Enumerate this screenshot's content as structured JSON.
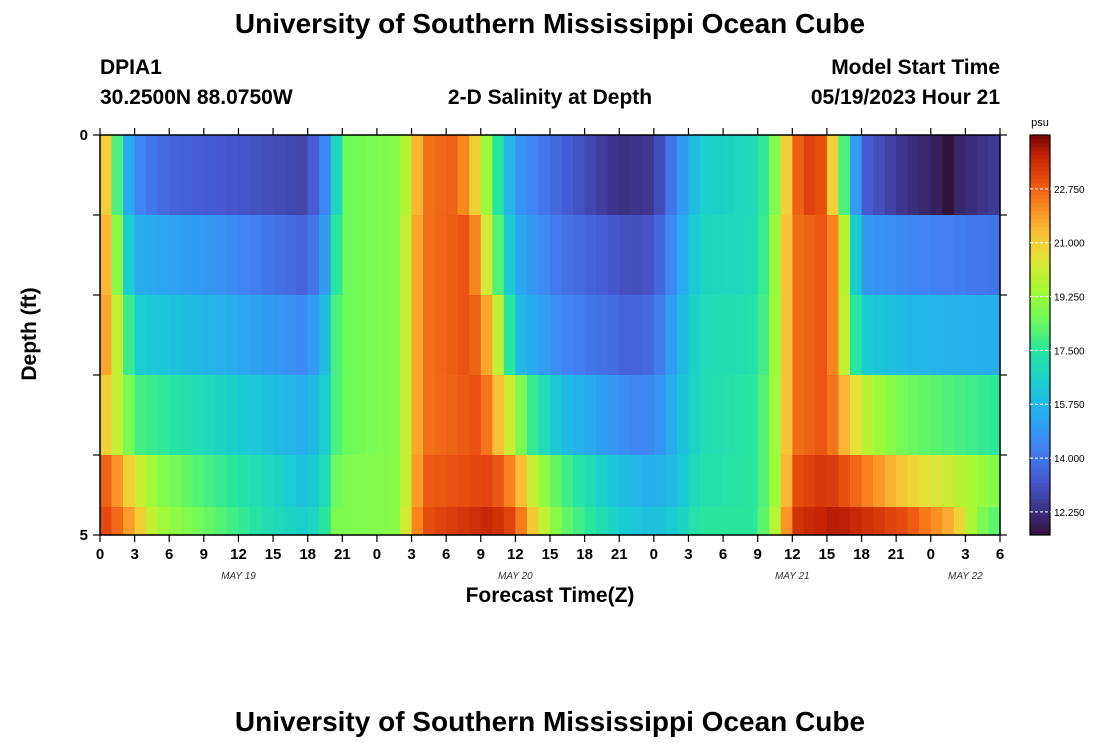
{
  "header": {
    "title": "University of Southern Mississippi Ocean Cube",
    "station": "DPIA1",
    "coords": "30.2500N  88.0750W",
    "plot_title": "2-D Salinity at Depth",
    "start_label": "Model Start Time",
    "start_value": "05/19/2023 Hour 21"
  },
  "footer": {
    "title": "University of Southern Mississippi Ocean Cube"
  },
  "chart_data": {
    "type": "heatmap",
    "title": "2-D Salinity at Depth",
    "xlabel": "Forecast Time(Z)",
    "ylabel": "Depth (ft)",
    "ylim": [
      0,
      5
    ],
    "y_tick_labels": [
      "0",
      "5"
    ],
    "x_tick_labels": [
      "0",
      "3",
      "6",
      "9",
      "12",
      "15",
      "18",
      "21",
      "0",
      "3",
      "6",
      "9",
      "12",
      "15",
      "18",
      "21",
      "0",
      "3",
      "6",
      "9",
      "12",
      "15",
      "18",
      "21",
      "0",
      "3",
      "6"
    ],
    "date_labels": [
      "MAY 19",
      "MAY 20",
      "MAY 21",
      "MAY 22"
    ],
    "x_hours_range": [
      0,
      78
    ],
    "colorbar": {
      "unit": "psu",
      "min": 11.5,
      "max": 24.5,
      "tick_labels": [
        "22.750",
        "21.000",
        "19.250",
        "17.500",
        "15.750",
        "14.000",
        "12.250"
      ],
      "tick_values": [
        22.75,
        21.0,
        19.25,
        17.5,
        15.75,
        14.0,
        12.25
      ]
    },
    "depth_layers": [
      {
        "depth": 0.5,
        "keyframes_hours": [
          [
            0,
            22.5
          ],
          [
            1,
            19.5
          ],
          [
            2,
            16.5
          ],
          [
            3,
            14.5
          ],
          [
            6,
            13.6
          ],
          [
            18,
            12.8
          ],
          [
            19.5,
            14.5
          ],
          [
            20.5,
            16.8
          ],
          [
            21.5,
            18.5
          ],
          [
            26,
            19.0
          ],
          [
            27,
            20.5
          ],
          [
            28,
            22.5
          ],
          [
            31,
            22.8
          ],
          [
            32.5,
            21.0
          ],
          [
            34,
            18.5
          ],
          [
            35,
            16.5
          ],
          [
            36,
            15.0
          ],
          [
            40,
            13.5
          ],
          [
            45,
            12.3
          ],
          [
            48,
            12.5
          ],
          [
            50,
            14.5
          ],
          [
            52,
            16.5
          ],
          [
            57,
            17.0
          ],
          [
            59,
            19.5
          ],
          [
            60,
            22.5
          ],
          [
            62,
            23.5
          ],
          [
            63,
            22.5
          ],
          [
            64,
            19.5
          ],
          [
            65,
            16.5
          ],
          [
            66,
            13.5
          ],
          [
            70,
            12.3
          ],
          [
            73,
            11.8
          ],
          [
            73.5,
            11.5
          ],
          [
            74,
            12.0
          ],
          [
            78,
            12.6
          ]
        ]
      },
      {
        "depth": 1.5,
        "keyframes_hours": [
          [
            0,
            22.5
          ],
          [
            1,
            20.5
          ],
          [
            2,
            17.5
          ],
          [
            3,
            15.5
          ],
          [
            9,
            15.0
          ],
          [
            15,
            14.0
          ],
          [
            18,
            13.5
          ],
          [
            19.5,
            15.0
          ],
          [
            20.5,
            17.5
          ],
          [
            21.5,
            18.5
          ],
          [
            26,
            19.0
          ],
          [
            27,
            21.0
          ],
          [
            28,
            22.5
          ],
          [
            32,
            23.0
          ],
          [
            33,
            21.5
          ],
          [
            34,
            19.0
          ],
          [
            36,
            15.5
          ],
          [
            40,
            14.0
          ],
          [
            46,
            13.0
          ],
          [
            48,
            13.2
          ],
          [
            50,
            15.0
          ],
          [
            52,
            16.8
          ],
          [
            57,
            17.0
          ],
          [
            59,
            20.0
          ],
          [
            60,
            22.5
          ],
          [
            63,
            23.0
          ],
          [
            64,
            21.5
          ],
          [
            65,
            18.0
          ],
          [
            66,
            15.0
          ],
          [
            70,
            14.5
          ],
          [
            78,
            14.0
          ]
        ]
      },
      {
        "depth": 2.5,
        "keyframes_hours": [
          [
            0,
            22.5
          ],
          [
            1,
            21.0
          ],
          [
            2,
            19.0
          ],
          [
            3,
            16.5
          ],
          [
            9,
            15.8
          ],
          [
            15,
            15.0
          ],
          [
            18,
            14.5
          ],
          [
            19.5,
            16.0
          ],
          [
            20.5,
            18.0
          ],
          [
            21.5,
            18.5
          ],
          [
            26,
            19.0
          ],
          [
            27,
            21.0
          ],
          [
            28,
            22.5
          ],
          [
            32,
            23.0
          ],
          [
            33,
            22.5
          ],
          [
            34,
            21.0
          ],
          [
            35,
            19.0
          ],
          [
            36,
            16.0
          ],
          [
            40,
            14.5
          ],
          [
            46,
            13.5
          ],
          [
            48,
            13.8
          ],
          [
            50,
            15.5
          ],
          [
            52,
            17.0
          ],
          [
            57,
            17.2
          ],
          [
            59,
            20.0
          ],
          [
            60,
            22.5
          ],
          [
            63,
            23.0
          ],
          [
            64,
            21.5
          ],
          [
            65,
            18.5
          ],
          [
            66,
            16.5
          ],
          [
            70,
            15.8
          ],
          [
            78,
            15.5
          ]
        ]
      },
      {
        "depth": 3.5,
        "keyframes_hours": [
          [
            0,
            21.5
          ],
          [
            1,
            20.5
          ],
          [
            2,
            19.5
          ],
          [
            3,
            18.0
          ],
          [
            9,
            17.0
          ],
          [
            15,
            16.0
          ],
          [
            18,
            15.5
          ],
          [
            19.5,
            16.5
          ],
          [
            20.5,
            18.0
          ],
          [
            21.5,
            18.5
          ],
          [
            26,
            19.0
          ],
          [
            27,
            21.0
          ],
          [
            28,
            22.5
          ],
          [
            33,
            23.0
          ],
          [
            34,
            22.0
          ],
          [
            36,
            19.5
          ],
          [
            37,
            18.0
          ],
          [
            40,
            16.0
          ],
          [
            46,
            14.5
          ],
          [
            48,
            14.5
          ],
          [
            50,
            15.8
          ],
          [
            52,
            17.0
          ],
          [
            57,
            17.5
          ],
          [
            59,
            20.0
          ],
          [
            60,
            22.5
          ],
          [
            63,
            23.0
          ],
          [
            65,
            21.0
          ],
          [
            67,
            19.5
          ],
          [
            70,
            18.5
          ],
          [
            74,
            18.0
          ],
          [
            78,
            17.5
          ]
        ]
      },
      {
        "depth": 4.5,
        "keyframes_hours": [
          [
            0,
            23.0
          ],
          [
            1,
            22.5
          ],
          [
            3,
            20.5
          ],
          [
            5,
            19.0
          ],
          [
            9,
            18.0
          ],
          [
            15,
            16.8
          ],
          [
            18,
            16.0
          ],
          [
            19.5,
            17.0
          ],
          [
            20.5,
            18.5
          ],
          [
            21.5,
            18.8
          ],
          [
            26,
            19.0
          ],
          [
            27,
            21.0
          ],
          [
            28,
            22.8
          ],
          [
            34,
            23.2
          ],
          [
            36,
            22.0
          ],
          [
            38,
            19.5
          ],
          [
            40,
            18.0
          ],
          [
            45,
            16.0
          ],
          [
            48,
            15.5
          ],
          [
            50,
            16.0
          ],
          [
            52,
            17.2
          ],
          [
            57,
            17.5
          ],
          [
            59,
            20.0
          ],
          [
            60,
            23.0
          ],
          [
            63,
            23.5
          ],
          [
            66,
            22.5
          ],
          [
            70,
            21.0
          ],
          [
            74,
            20.0
          ],
          [
            78,
            18.8
          ]
        ]
      },
      {
        "depth": 4.8,
        "keyframes_hours": [
          [
            0,
            23.2
          ],
          [
            1,
            23.0
          ],
          [
            3,
            21.5
          ],
          [
            5,
            19.5
          ],
          [
            9,
            18.5
          ],
          [
            15,
            17.0
          ],
          [
            18,
            16.5
          ],
          [
            19.5,
            17.5
          ],
          [
            20.5,
            18.8
          ],
          [
            21.5,
            18.8
          ],
          [
            26,
            19.0
          ],
          [
            27,
            21.5
          ],
          [
            28,
            23.0
          ],
          [
            34,
            23.8
          ],
          [
            36,
            23.0
          ],
          [
            38,
            20.5
          ],
          [
            40,
            18.5
          ],
          [
            45,
            16.5
          ],
          [
            48,
            16.0
          ],
          [
            50,
            16.5
          ],
          [
            52,
            17.5
          ],
          [
            57,
            17.5
          ],
          [
            59,
            20.5
          ],
          [
            60,
            23.5
          ],
          [
            64,
            24.0
          ],
          [
            70,
            23.0
          ],
          [
            74,
            21.5
          ],
          [
            76,
            19.0
          ],
          [
            78,
            18.0
          ]
        ]
      }
    ]
  }
}
